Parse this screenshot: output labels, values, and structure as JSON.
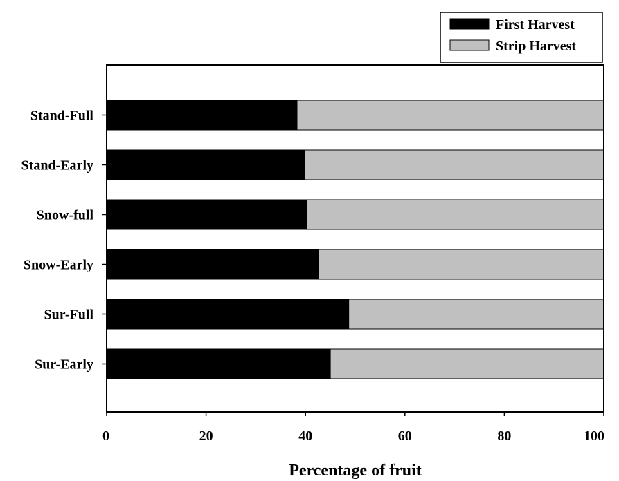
{
  "chart_data": {
    "type": "bar",
    "orientation": "horizontal",
    "stacked": true,
    "title": "",
    "xlabel": "Percentage of fruit",
    "ylabel": "",
    "xlim": [
      0,
      100
    ],
    "xticks": [
      0,
      20,
      40,
      60,
      80,
      100
    ],
    "grid": false,
    "legend_position": "top-right",
    "categories": [
      "Stand-Full",
      "Stand-Early",
      "Snow-full",
      "Snow-Early",
      "Sur-Full",
      "Sur-Early"
    ],
    "series": [
      {
        "name": "First Harvest",
        "color": "#000000",
        "values": [
          38.3,
          39.8,
          40.2,
          42.6,
          48.7,
          45.0
        ]
      },
      {
        "name": "Strip Harvest",
        "color": "#c0c0c0",
        "values": [
          61.7,
          60.2,
          59.8,
          57.4,
          51.3,
          55.0
        ]
      }
    ]
  }
}
